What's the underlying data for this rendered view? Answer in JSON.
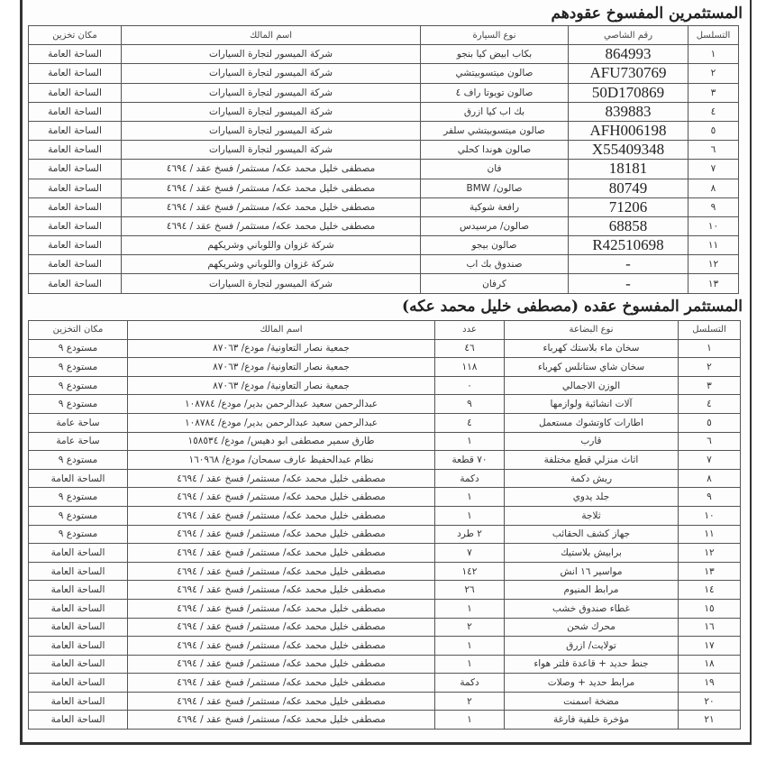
{
  "section1": {
    "title": "المستثمرين المفسوخ عقودهم",
    "headers": [
      "التسلسل",
      "رقم الشاصي",
      "نوع السيارة",
      "اسم المالك",
      "مكان تخزين"
    ],
    "rows": [
      [
        "١",
        "864993",
        "بكاب ابيض كيا بنجو",
        "شركة الميسور لتجارة السيارات",
        "الساحة العامة"
      ],
      [
        "٢",
        "AFU730769",
        "صالون ميتسوبيتشي",
        "شركة الميسور لتجارة السيارات",
        "الساحة العامة"
      ],
      [
        "٣",
        "50D170869",
        "صالون تويوتا راف ٤",
        "شركة الميسور لتجارة السيارات",
        "الساحة العامة"
      ],
      [
        "٤",
        "839883",
        "بك اب كيا ازرق",
        "شركة الميسور لتجارة السيارات",
        "الساحة العامة"
      ],
      [
        "٥",
        "AFH006198",
        "صالون ميتسوبيتشي سلفر",
        "شركة الميسور لتجارة السيارات",
        "الساحة العامة"
      ],
      [
        "٦",
        "X55409348",
        "صالون هوندا كحلي",
        "شركة الميسور لتجارة السيارات",
        "الساحة العامة"
      ],
      [
        "٧",
        "18181",
        "فان",
        "مصطفى خليل محمد عكه/ مستثمر/ فسخ عقد / ٤٦٩٤",
        "الساحة العامة"
      ],
      [
        "٨",
        "80749",
        "صالون/ BMW",
        "مصطفى خليل محمد عكه/ مستثمر/ فسخ عقد / ٤٦٩٤",
        "الساحة العامة"
      ],
      [
        "٩",
        "71206",
        "رافعة شوكية",
        "مصطفى خليل محمد عكه/ مستثمر/ فسخ عقد / ٤٦٩٤",
        "الساحة العامة"
      ],
      [
        "١٠",
        "68858",
        "صالون/ مرسيدس",
        "مصطفى خليل محمد عكه/ مستثمر/ فسخ عقد / ٤٦٩٤",
        "الساحة العامة"
      ],
      [
        "١١",
        "R42510698",
        "صالون بيجو",
        "شركة غزوان واللوباني وشريكهم",
        "الساحة العامة"
      ],
      [
        "١٢",
        "-",
        "صندوق بك اب",
        "شركة غزوان واللوباني وشريكهم",
        "الساحة العامة"
      ],
      [
        "١٣",
        "-",
        "كرفان",
        "شركة الميسور لتجارة السيارات",
        "الساحة العامة"
      ]
    ]
  },
  "section2": {
    "title": "المستثمر المفسوخ عقده (مصطفى خليل محمد عكه)",
    "headers": [
      "التسلسل",
      "نوع البضاعة",
      "عدد",
      "اسم المالك",
      "مكان التخزين"
    ],
    "rows": [
      [
        "١",
        "سخان ماء بلاستك كهرباء",
        "٤٦",
        "جمعية نصار التعاونية/ مودع/ ٨٧٠٦٣",
        "مستودع ٩"
      ],
      [
        "٢",
        "سخان شاي ستانلس كهرباء",
        "١١٨",
        "جمعية نصار التعاونية/ مودع/ ٨٧٠٦٣",
        "مستودع ٩"
      ],
      [
        "٣",
        "الوزن الاجمالي",
        "٠",
        "جمعية نصار التعاونية/ مودع/ ٨٧٠٦٣",
        "مستودع ٩"
      ],
      [
        "٤",
        "آلات انشائية ولوازمها",
        "٩",
        "عبدالرحمن سعيد عبدالرحمن بدير/ مودع/ ١٠٨٧٨٤",
        "مستودع ٩"
      ],
      [
        "٥",
        "اطارات كاوتشوك مستعمل",
        "٤",
        "عبدالرحمن سعيد عبدالرحمن بدير/ مودع/ ١٠٨٧٨٤",
        "ساحة عامة"
      ],
      [
        "٦",
        "قارب",
        "١",
        "طارق سمير مصطفى ابو دهيس/ مودع/ ١٥٨٥٣٤",
        "ساحة عامة"
      ],
      [
        "٧",
        "اثاث منزلي قطع مختلفة",
        "٧٠ قطعة",
        "نظام عبدالحفيظ عارف سمحان/ مودع/ ١٦٠٩٦٨",
        "مستودع ٩"
      ],
      [
        "٨",
        "ريش دكمة",
        "دكمة",
        "مصطفى خليل محمد عكه/ مستثمر/ فسخ عقد / ٤٦٩٤",
        "الساحة العامة"
      ],
      [
        "٩",
        "جلد يدوي",
        "١",
        "مصطفى خليل محمد عكه/ مستثمر/ فسخ عقد / ٤٦٩٤",
        "مستودع ٩"
      ],
      [
        "١٠",
        "ثلاجة",
        "١",
        "مصطفى خليل محمد عكه/ مستثمر/ فسخ عقد / ٤٦٩٤",
        "مستودع ٩"
      ],
      [
        "١١",
        "جهاز كشف الحقائب",
        "٢ طرد",
        "مصطفى خليل محمد عكه/ مستثمر/ فسخ عقد / ٤٦٩٤",
        "مستودع ٩"
      ],
      [
        "١٢",
        "برابيش بلاستيك",
        "٧",
        "مصطفى خليل محمد عكه/ مستثمر/ فسخ عقد / ٤٦٩٤",
        "الساحة العامة"
      ],
      [
        "١٣",
        "مواسير ١٦ انش",
        "١٤٢",
        "مصطفى خليل محمد عكه/ مستثمر/ فسخ عقد / ٤٦٩٤",
        "الساحة العامة"
      ],
      [
        "١٤",
        "مرابط المنيوم",
        "٢٦",
        "مصطفى خليل محمد عكه/ مستثمر/ فسخ عقد / ٤٦٩٤",
        "الساحة العامة"
      ],
      [
        "١٥",
        "غطاء صندوق خشب",
        "١",
        "مصطفى خليل محمد عكه/ مستثمر/ فسخ عقد / ٤٦٩٤",
        "الساحة العامة"
      ],
      [
        "١٦",
        "محرك شحن",
        "٢",
        "مصطفى خليل محمد عكه/ مستثمر/ فسخ عقد / ٤٦٩٤",
        "الساحة العامة"
      ],
      [
        "١٧",
        "تولايت/ ازرق",
        "١",
        "مصطفى خليل محمد عكه/ مستثمر/ فسخ عقد / ٤٦٩٤",
        "الساحة العامة"
      ],
      [
        "١٨",
        "جنط حديد + قاعدة فلتر هواء",
        "١",
        "مصطفى خليل محمد عكه/ مستثمر/ فسخ عقد / ٤٦٩٤",
        "الساحة العامة"
      ],
      [
        "١٩",
        "مرابط حديد + وصلات",
        "دكمة",
        "مصطفى خليل محمد عكه/ مستثمر/ فسخ عقد / ٤٦٩٤",
        "الساحة العامة"
      ],
      [
        "٢٠",
        "مضخة اسمنت",
        "٢",
        "مصطفى خليل محمد عكه/ مستثمر/ فسخ عقد / ٤٦٩٤",
        "الساحة العامة"
      ],
      [
        "٢١",
        "مؤخرة خلفية فارغة",
        "١",
        "مصطفى خليل محمد عكه/ مستثمر/ فسخ عقد / ٤٦٩٤",
        "الساحة العامة"
      ]
    ]
  }
}
